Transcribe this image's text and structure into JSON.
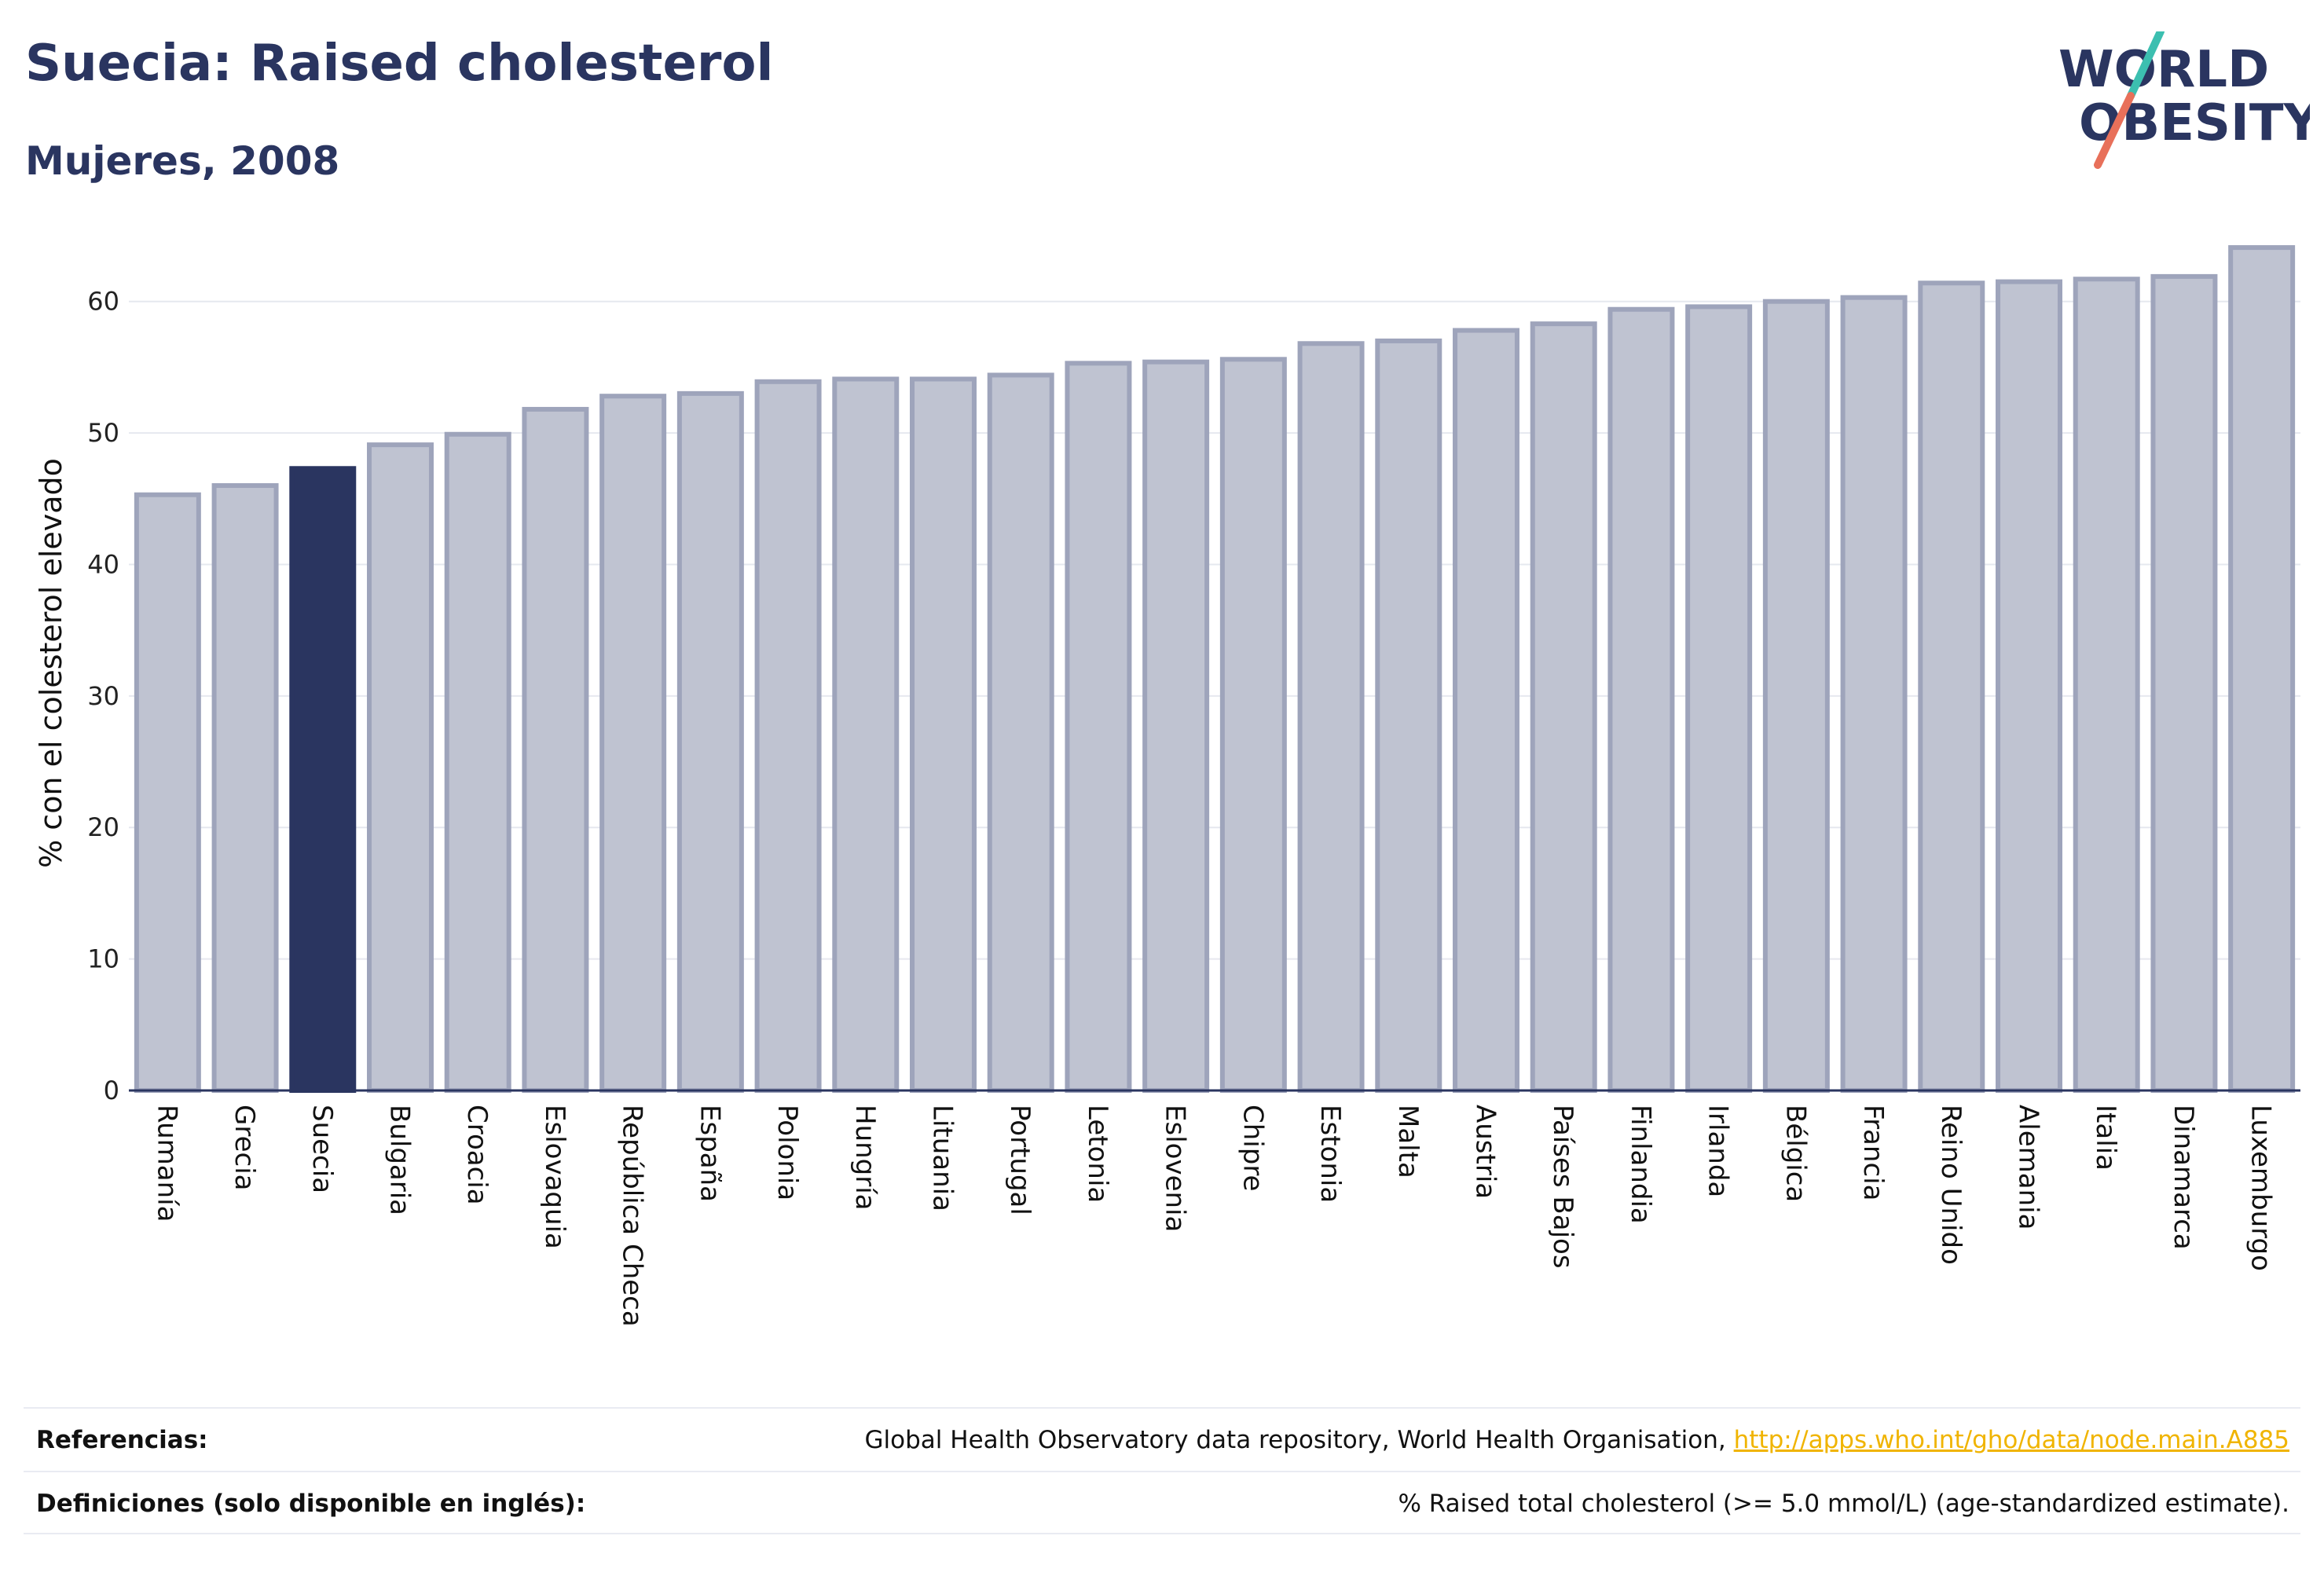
{
  "header": {
    "title": "Suecia: Raised cholesterol",
    "subtitle": "Mujeres, 2008"
  },
  "logo": {
    "line1": "WORLD",
    "line2": "OBESITY",
    "colors": {
      "text": "#2a3560",
      "slash_teal": "#3cbfb0",
      "slash_coral": "#e8705a"
    }
  },
  "chart_data": {
    "type": "bar",
    "ylabel": "% con el colesterol elevado",
    "ylim": [
      0,
      65
    ],
    "yticks": [
      0,
      10,
      20,
      30,
      40,
      50,
      60
    ],
    "grid": true,
    "highlight": "Suecia",
    "colors": {
      "bar": "#bfc3d1",
      "bar_edge": "#9ea4bb",
      "highlight": "#2a3560"
    },
    "categories": [
      "Rumanía",
      "Grecia",
      "Suecia",
      "Bulgaria",
      "Croacia",
      "Eslovaquia",
      "República Checa",
      "España",
      "Polonia",
      "Hungría",
      "Lituania",
      "Portugal",
      "Letonia",
      "Eslovenia",
      "Chipre",
      "Estonia",
      "Malta",
      "Austria",
      "Países Bajos",
      "Finlandia",
      "Irlanda",
      "Bélgica",
      "Francia",
      "Reino Unido",
      "Alemania",
      "Italia",
      "Dinamarca",
      "Luxemburgo"
    ],
    "values": [
      45.3,
      46.0,
      47.3,
      49.1,
      49.9,
      51.8,
      52.8,
      53.0,
      53.9,
      54.1,
      54.1,
      54.4,
      55.3,
      55.4,
      55.6,
      56.8,
      57.0,
      57.8,
      58.3,
      59.4,
      59.6,
      60.0,
      60.3,
      61.4,
      61.5,
      61.7,
      61.9,
      64.1
    ]
  },
  "footer": {
    "references_label": "Referencias:",
    "references_text": "Global Health Observatory data repository, World Health Organisation, ",
    "references_link": "http://apps.who.int/gho/data/node.main.A885",
    "definitions_label": "Definiciones (solo disponible en inglés):",
    "definitions_text": "% Raised total cholesterol (>= 5.0 mmol/L) (age-standardized estimate)."
  }
}
